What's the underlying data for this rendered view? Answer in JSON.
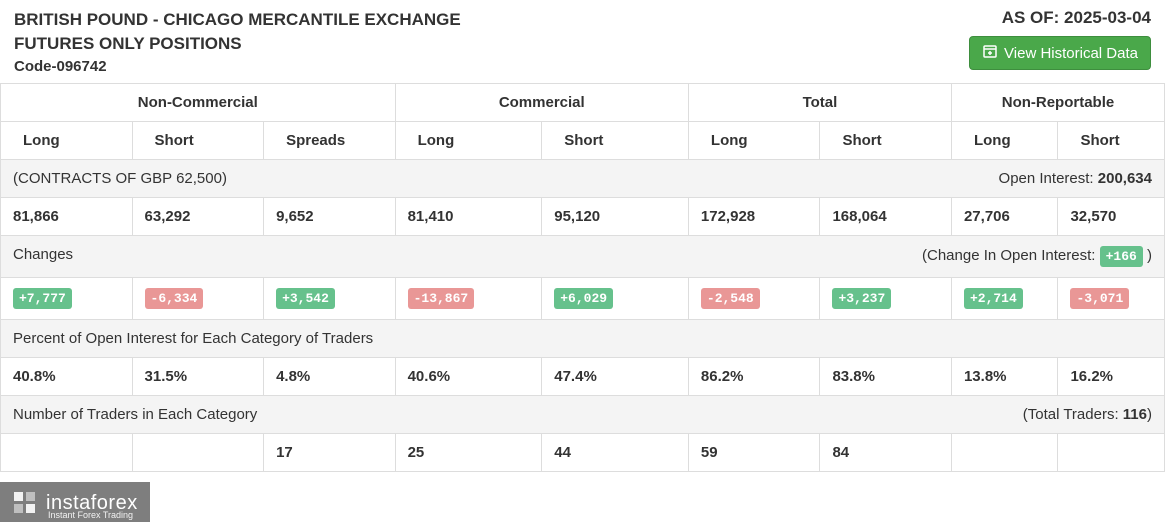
{
  "header": {
    "title_line1": "BRITISH POUND - CHICAGO MERCANTILE EXCHANGE",
    "title_line2": "FUTURES ONLY POSITIONS",
    "code": "Code-096742",
    "asof_prefix": "AS OF: ",
    "asof_date": "2025-03-04",
    "historical_btn": "View Historical Data"
  },
  "colors": {
    "accent_green": "#4aa84a",
    "badge_pos": "#66c18c",
    "badge_neg": "#e99796",
    "border": "#dddddd",
    "section_bg": "#f4f4f4",
    "text": "#333333"
  },
  "table": {
    "group_headers": [
      "Non-Commercial",
      "Commercial",
      "Total",
      "Non-Reportable"
    ],
    "sub_headers": [
      "Long",
      "Short",
      "Spreads",
      "Long",
      "Short",
      "Long",
      "Short",
      "Long",
      "Short"
    ],
    "section1": {
      "label": "(CONTRACTS OF GBP 62,500)",
      "right_label": "Open Interest: ",
      "right_value": "200,634"
    },
    "row_positions": [
      "81,866",
      "63,292",
      "9,652",
      "81,410",
      "95,120",
      "172,928",
      "168,064",
      "27,706",
      "32,570"
    ],
    "section2": {
      "label": "Changes",
      "right_label": "(Change In Open Interest: ",
      "right_badge": "+166",
      "right_badge_sign": "pos",
      "right_suffix": " )"
    },
    "row_changes": [
      {
        "v": "+7,777",
        "s": "pos"
      },
      {
        "v": "-6,334",
        "s": "neg"
      },
      {
        "v": "+3,542",
        "s": "pos"
      },
      {
        "v": "-13,867",
        "s": "neg"
      },
      {
        "v": "+6,029",
        "s": "pos"
      },
      {
        "v": "-2,548",
        "s": "neg"
      },
      {
        "v": "+3,237",
        "s": "pos"
      },
      {
        "v": "+2,714",
        "s": "pos"
      },
      {
        "v": "-3,071",
        "s": "neg"
      }
    ],
    "section3": {
      "label": "Percent of Open Interest for Each Category of Traders"
    },
    "row_percents": [
      "40.8%",
      "31.5%",
      "4.8%",
      "40.6%",
      "47.4%",
      "86.2%",
      "83.8%",
      "13.8%",
      "16.2%"
    ],
    "section4": {
      "label": "Number of Traders in Each Category",
      "right_label": "(Total Traders: ",
      "right_value": "116",
      "right_suffix": ")"
    },
    "row_traders": [
      "",
      "",
      "17",
      "25",
      "44",
      "59",
      "84",
      "",
      ""
    ]
  },
  "watermark": {
    "brand": "instaforex",
    "tagline": "Instant Forex Trading"
  }
}
